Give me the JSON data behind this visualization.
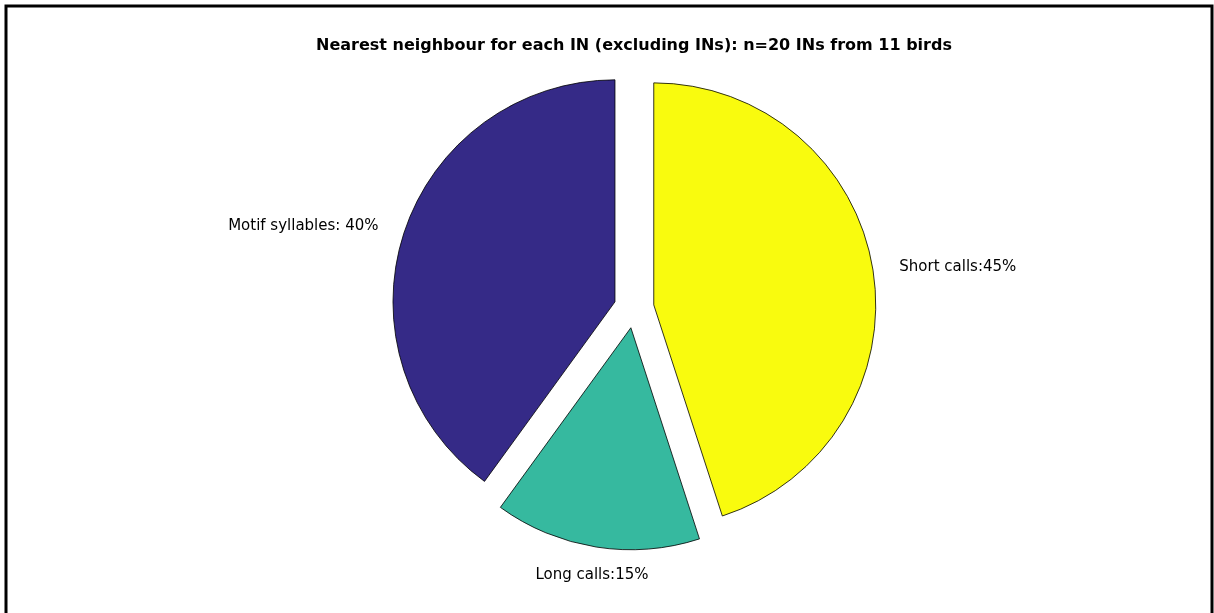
{
  "chart_data": {
    "type": "pie",
    "title": "Nearest neighbour for each IN (excluding INs): n=20 INs from 11 birds",
    "categories": [
      "Short calls:45%",
      "Long calls:15%",
      "Motif syllables: 40%"
    ],
    "values": [
      45,
      15,
      40
    ],
    "colors": [
      "#f9fb0e",
      "#36b99f",
      "#352a87"
    ]
  }
}
